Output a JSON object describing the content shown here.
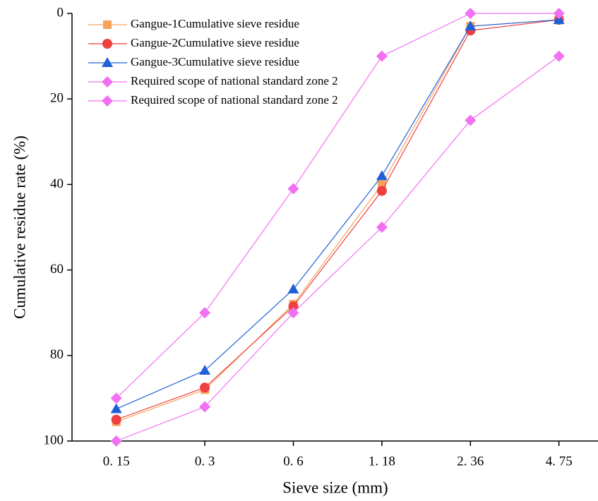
{
  "chart_data": {
    "type": "line",
    "x_label": "Sieve size (mm)",
    "y_label": "Cumulative residue rate (%)",
    "categories": [
      "0. 15",
      "0. 3",
      "0. 6",
      "1. 18",
      "2. 36",
      "4. 75"
    ],
    "ylim": [
      0,
      100
    ],
    "y_reversed": true,
    "yticks": [
      0,
      20,
      40,
      60,
      80,
      100
    ],
    "legend": "upper left",
    "series": [
      {
        "name": "Gangue-1Cumulative sieve residue",
        "color": "#f5a35c",
        "marker": "square",
        "values": [
          95.5,
          88,
          68,
          40,
          3,
          1.5
        ]
      },
      {
        "name": "Gangue-2Cumulative sieve residue",
        "color": "#ee4040",
        "marker": "circle",
        "values": [
          95,
          87.5,
          68.5,
          41.5,
          4,
          1.5
        ]
      },
      {
        "name": "Gangue-3Cumulative sieve residue",
        "color": "#1f60d8",
        "marker": "triangle",
        "values": [
          92.5,
          83.5,
          64.5,
          38,
          3,
          1.5
        ]
      },
      {
        "name": "Required scope of national standard zone 2",
        "color": "#f270f2",
        "marker": "diamond",
        "values": [
          90,
          70,
          41,
          10,
          0,
          0
        ]
      },
      {
        "name": "Required scope of national standard zone 2",
        "color": "#f270f2",
        "marker": "diamond",
        "values": [
          100,
          92,
          70,
          50,
          25,
          10
        ]
      }
    ]
  }
}
